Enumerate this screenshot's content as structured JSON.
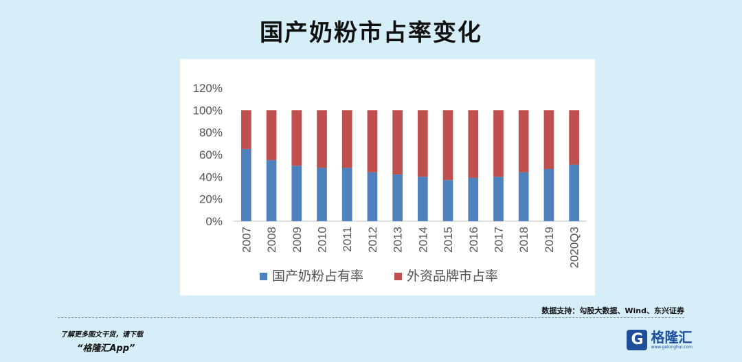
{
  "page": {
    "title": "国产奶粉市占率变化",
    "source": "数据支持：勾股大数据、Wind、东兴证券",
    "promo_line1": "了解更多图文干货，请下载",
    "promo_line2": "“格隆汇App”",
    "logo": {
      "mark": "G",
      "name": "格隆汇",
      "url": "www.gelonghui.com"
    },
    "colors": {
      "background": "#d6eef8",
      "domestic": "#4f81bd",
      "foreign": "#c0504d"
    }
  },
  "chart_data": {
    "type": "bar",
    "stacked": true,
    "title": "",
    "xlabel": "",
    "ylabel": "",
    "categories": [
      "2007",
      "2008",
      "2009",
      "2010",
      "2011",
      "2012",
      "2013",
      "2014",
      "2015",
      "2016",
      "2017",
      "2018",
      "2019",
      "2020Q3"
    ],
    "series": [
      {
        "name": "国产奶粉占有率",
        "color": "#4f81bd",
        "values": [
          65,
          55,
          50,
          48,
          48,
          44,
          42,
          40,
          37,
          39,
          40,
          44,
          47,
          51
        ]
      },
      {
        "name": "外资品牌市占率",
        "color": "#c0504d",
        "values": [
          35,
          45,
          50,
          52,
          52,
          56,
          58,
          60,
          63,
          61,
          60,
          56,
          53,
          49
        ]
      }
    ],
    "ylim": [
      0,
      120
    ],
    "yticks": [
      "0%",
      "20%",
      "40%",
      "60%",
      "80%",
      "100%",
      "120%"
    ],
    "grid": false,
    "legend_position": "bottom"
  }
}
